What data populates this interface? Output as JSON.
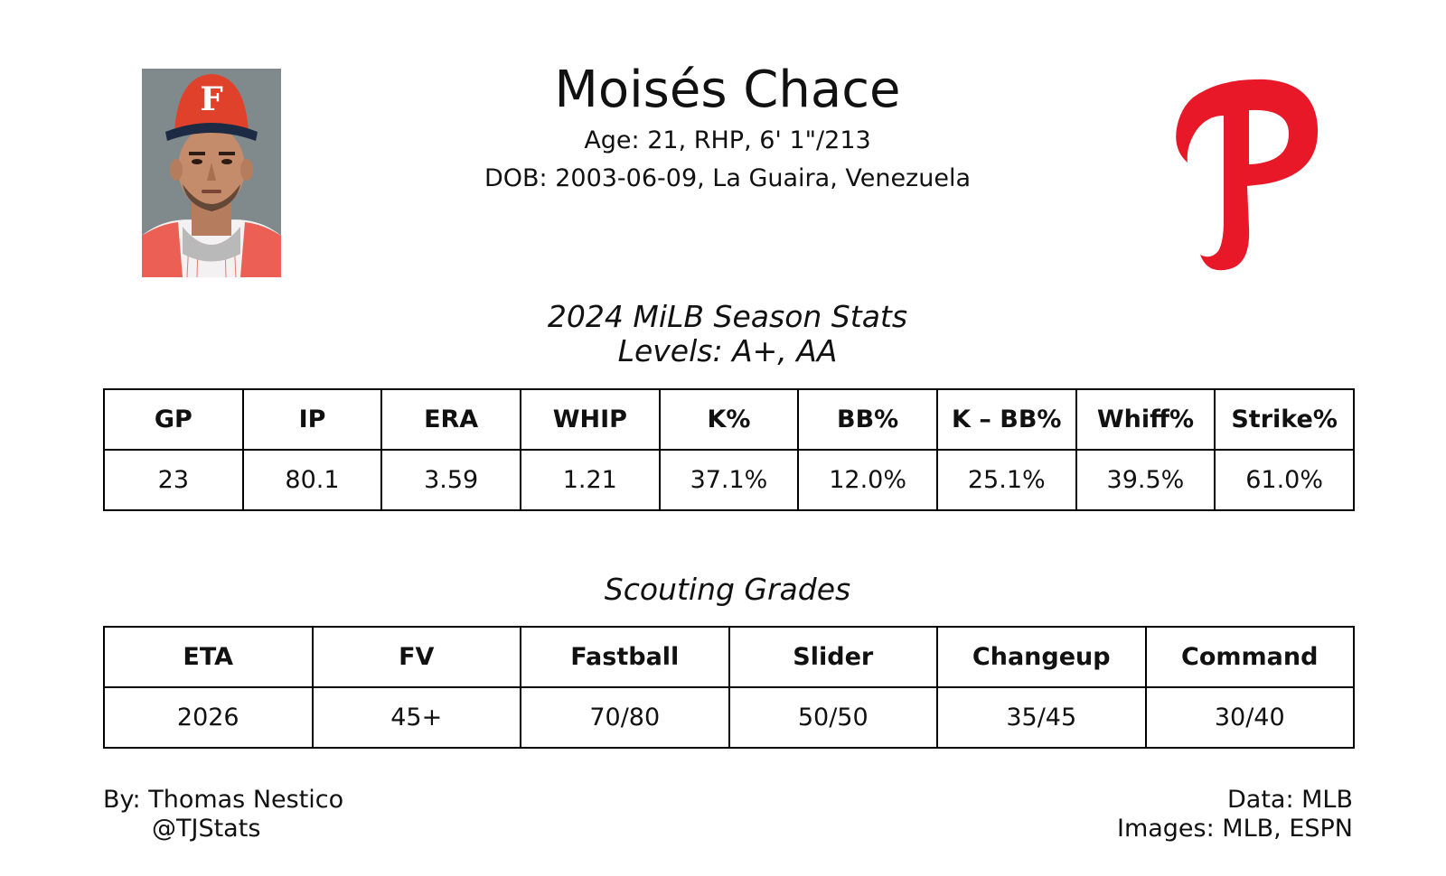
{
  "player": {
    "name": "Moisés Chace",
    "bio_line": "Age: 21, RHP, 6' 1\"/213",
    "dob_line": "DOB: 2003-06-09, La Guaira, Venezuela"
  },
  "season": {
    "title": "2024 MiLB Season Stats",
    "levels": "Levels: A+, AA",
    "headers": [
      "GP",
      "IP",
      "ERA",
      "WHIP",
      "K%",
      "BB%",
      "K – BB%",
      "Whiff%",
      "Strike%"
    ],
    "values": [
      "23",
      "80.1",
      "3.59",
      "1.21",
      "37.1%",
      "12.0%",
      "25.1%",
      "39.5%",
      "61.0%"
    ]
  },
  "scouting": {
    "title": "Scouting Grades",
    "headers": [
      "ETA",
      "FV",
      "Fastball",
      "Slider",
      "Changeup",
      "Command"
    ],
    "values": [
      "2026",
      "45+",
      "70/80",
      "50/50",
      "35/45",
      "30/40"
    ]
  },
  "footer": {
    "by": "By: Thomas Nestico",
    "handle": "@TJStats",
    "data": "Data: MLB",
    "images": "Images: MLB, ESPN"
  },
  "colors": {
    "logo_red": "#e81828",
    "cap_red": "#e0412a"
  },
  "icons": {
    "photo": "player-headshot",
    "logo": "phillies-p-logo",
    "cap_logo": "cap-f-logo"
  }
}
